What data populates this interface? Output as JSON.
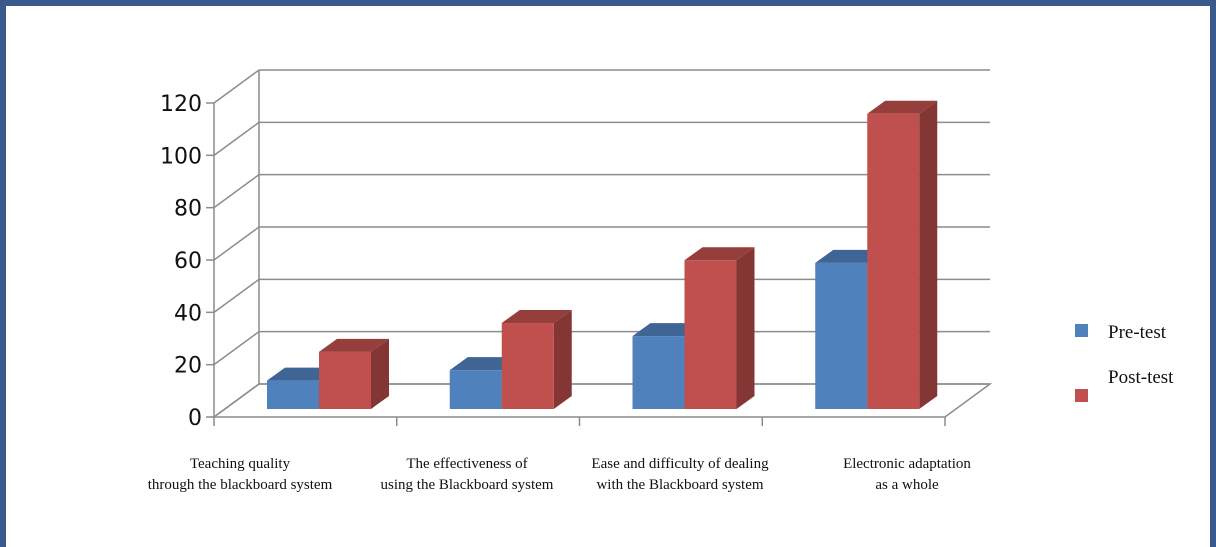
{
  "chart_data": {
    "type": "bar",
    "categories": [
      [
        "Teaching  quality",
        "through the blackboard  system"
      ],
      [
        "The effectiveness  of",
        "using the Blackboard  system"
      ],
      [
        "Ease and difficulty  of dealing",
        "with the Blackboard  system"
      ],
      [
        "Electronic  adaptation",
        "as a whole"
      ]
    ],
    "series": [
      {
        "name": "Pre-test",
        "values": [
          12,
          16,
          29,
          57
        ],
        "color": "#4f81bd"
      },
      {
        "name": "Post-test",
        "values": [
          23,
          34,
          58,
          114
        ],
        "color": "#c0504d"
      }
    ],
    "yticks": [
      0,
      20,
      40,
      60,
      80,
      100,
      120
    ],
    "ylim": [
      0,
      120
    ],
    "grid": true,
    "legend": "right",
    "title": "",
    "xlabel": "",
    "ylabel": ""
  }
}
